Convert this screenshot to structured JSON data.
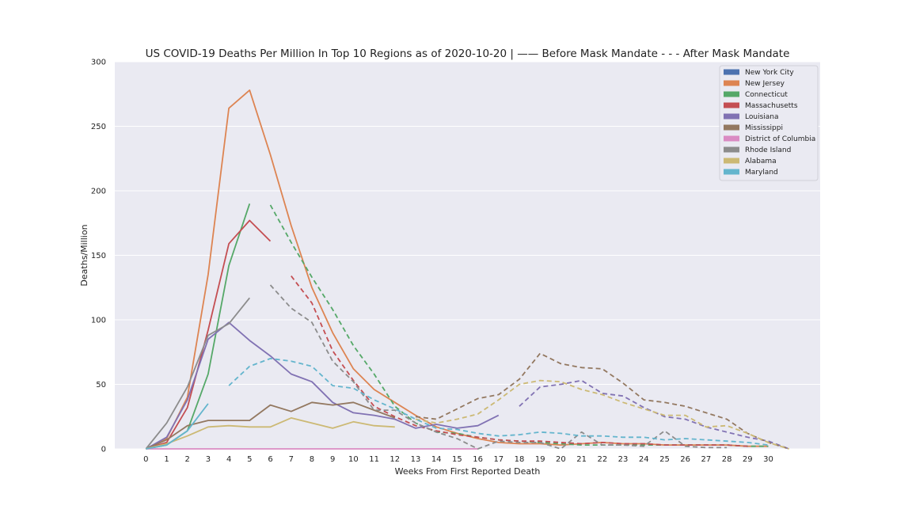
{
  "chart_data": {
    "type": "line",
    "title": "US COVID-19 Deaths Per Million In Top 10 Regions as of 2020-10-20 | —— Before Mask Mandate  - - - After Mask Mandate",
    "xlabel": "Weeks From First Reported Death",
    "ylabel": "Deaths/Million",
    "xlim": [
      -1.5,
      32.5
    ],
    "ylim": [
      0,
      300
    ],
    "xticks": [
      0,
      1,
      2,
      3,
      4,
      5,
      6,
      7,
      8,
      9,
      10,
      11,
      12,
      13,
      14,
      15,
      16,
      17,
      18,
      19,
      20,
      21,
      22,
      23,
      24,
      25,
      26,
      27,
      28,
      29,
      30
    ],
    "yticks": [
      0,
      50,
      100,
      150,
      200,
      250,
      300
    ],
    "grid": true,
    "legend_position": "top-right",
    "background_color": "#eaeaf2",
    "series": [
      {
        "name": "New York City",
        "color": "#4c72b0",
        "before": [],
        "after": []
      },
      {
        "name": "New Jersey",
        "color": "#dd8452",
        "before": [
          [
            0,
            0
          ],
          [
            1,
            8
          ],
          [
            2,
            40
          ],
          [
            3,
            135
          ],
          [
            4,
            264
          ],
          [
            5,
            278
          ],
          [
            6,
            228
          ],
          [
            7,
            173
          ],
          [
            8,
            125
          ],
          [
            9,
            90
          ],
          [
            10,
            62
          ],
          [
            11,
            46
          ],
          [
            12,
            36
          ],
          [
            13,
            26
          ],
          [
            14,
            17
          ],
          [
            15,
            12
          ],
          [
            16,
            8
          ],
          [
            17,
            5
          ],
          [
            18,
            4
          ],
          [
            19,
            4
          ],
          [
            20,
            3
          ],
          [
            21,
            4
          ],
          [
            22,
            5
          ],
          [
            23,
            4
          ],
          [
            24,
            4
          ],
          [
            25,
            3
          ],
          [
            26,
            3
          ],
          [
            27,
            3
          ],
          [
            28,
            3
          ],
          [
            29,
            2
          ],
          [
            30,
            2
          ]
        ],
        "after": []
      },
      {
        "name": "Connecticut",
        "color": "#55a868",
        "before": [
          [
            0,
            0
          ],
          [
            1,
            3
          ],
          [
            2,
            14
          ],
          [
            3,
            58
          ],
          [
            4,
            142
          ],
          [
            5,
            190
          ]
        ],
        "after": [
          [
            6,
            189
          ],
          [
            7,
            160
          ],
          [
            8,
            133
          ],
          [
            9,
            108
          ],
          [
            10,
            80
          ],
          [
            11,
            58
          ],
          [
            12,
            33
          ],
          [
            13,
            20
          ],
          [
            14,
            13
          ],
          [
            15,
            12
          ],
          [
            16,
            9
          ],
          [
            17,
            7
          ],
          [
            18,
            6
          ],
          [
            19,
            5
          ],
          [
            20,
            4
          ],
          [
            21,
            3
          ],
          [
            22,
            3
          ],
          [
            23,
            3
          ],
          [
            24,
            3
          ],
          [
            25,
            3
          ],
          [
            26,
            3
          ],
          [
            27,
            3
          ],
          [
            28,
            3
          ],
          [
            29,
            2
          ],
          [
            30,
            2
          ]
        ]
      },
      {
        "name": "Massachusetts",
        "color": "#c44e52",
        "before": [
          [
            0,
            0
          ],
          [
            1,
            5
          ],
          [
            2,
            32
          ],
          [
            3,
            92
          ],
          [
            4,
            159
          ],
          [
            5,
            177
          ],
          [
            6,
            161
          ]
        ],
        "after": [
          [
            7,
            134
          ],
          [
            8,
            113
          ],
          [
            9,
            76
          ],
          [
            10,
            53
          ],
          [
            11,
            33
          ],
          [
            12,
            25
          ],
          [
            13,
            18
          ],
          [
            14,
            14
          ],
          [
            15,
            11
          ],
          [
            16,
            9
          ],
          [
            17,
            7
          ],
          [
            18,
            6
          ],
          [
            19,
            6
          ],
          [
            20,
            5
          ],
          [
            21,
            4
          ],
          [
            22,
            5
          ],
          [
            23,
            4
          ],
          [
            24,
            4
          ],
          [
            25,
            3
          ],
          [
            26,
            3
          ],
          [
            27,
            3
          ],
          [
            28,
            3
          ],
          [
            29,
            2
          ]
        ]
      },
      {
        "name": "Louisiana",
        "color": "#8172b3",
        "before": [
          [
            0,
            0
          ],
          [
            1,
            9
          ],
          [
            2,
            38
          ],
          [
            3,
            85
          ],
          [
            4,
            98
          ],
          [
            5,
            84
          ],
          [
            6,
            72
          ],
          [
            7,
            58
          ],
          [
            8,
            52
          ],
          [
            9,
            36
          ],
          [
            10,
            28
          ],
          [
            11,
            26
          ],
          [
            12,
            23
          ],
          [
            13,
            16
          ],
          [
            14,
            19
          ],
          [
            15,
            16
          ],
          [
            16,
            18
          ],
          [
            17,
            26
          ]
        ],
        "after": [
          [
            18,
            33
          ],
          [
            19,
            48
          ],
          [
            20,
            50
          ],
          [
            21,
            53
          ],
          [
            22,
            43
          ],
          [
            23,
            41
          ],
          [
            24,
            32
          ],
          [
            25,
            25
          ],
          [
            26,
            23
          ],
          [
            27,
            17
          ],
          [
            28,
            13
          ],
          [
            29,
            9
          ],
          [
            30,
            6
          ],
          [
            31,
            0
          ]
        ]
      },
      {
        "name": "Mississippi",
        "color": "#937860",
        "before": [
          [
            0,
            0
          ],
          [
            1,
            7
          ],
          [
            2,
            18
          ],
          [
            3,
            22
          ],
          [
            4,
            22
          ],
          [
            5,
            22
          ],
          [
            6,
            34
          ],
          [
            7,
            29
          ],
          [
            8,
            36
          ],
          [
            9,
            34
          ],
          [
            10,
            36
          ],
          [
            11,
            30
          ],
          [
            12,
            24
          ]
        ],
        "after": [
          [
            13,
            25
          ],
          [
            14,
            23
          ],
          [
            15,
            31
          ],
          [
            16,
            39
          ],
          [
            17,
            42
          ],
          [
            18,
            54
          ],
          [
            19,
            74
          ],
          [
            20,
            66
          ],
          [
            21,
            63
          ],
          [
            22,
            62
          ],
          [
            23,
            51
          ],
          [
            24,
            38
          ],
          [
            25,
            36
          ],
          [
            26,
            33
          ],
          [
            27,
            28
          ],
          [
            28,
            23
          ],
          [
            29,
            12
          ],
          [
            30,
            5
          ],
          [
            31,
            0
          ]
        ]
      },
      {
        "name": "District of Columbia",
        "color": "#da8bc3",
        "before": [
          [
            0,
            0
          ],
          [
            1,
            0
          ],
          [
            2,
            0
          ],
          [
            3,
            0
          ],
          [
            4,
            0
          ],
          [
            5,
            0
          ],
          [
            6,
            0
          ],
          [
            7,
            0
          ],
          [
            8,
            0
          ],
          [
            9,
            0
          ],
          [
            10,
            0
          ],
          [
            11,
            0
          ],
          [
            12,
            0
          ],
          [
            13,
            0
          ],
          [
            14,
            0
          ],
          [
            15,
            0
          ],
          [
            16,
            0
          ]
        ],
        "after": []
      },
      {
        "name": "Rhode Island",
        "color": "#8c8c8c",
        "before": [
          [
            0,
            0
          ],
          [
            1,
            20
          ],
          [
            2,
            48
          ],
          [
            3,
            88
          ],
          [
            4,
            97
          ],
          [
            5,
            117
          ]
        ],
        "after": [
          [
            6,
            127
          ],
          [
            7,
            109
          ],
          [
            8,
            98
          ],
          [
            9,
            68
          ],
          [
            10,
            52
          ],
          [
            11,
            30
          ],
          [
            12,
            30
          ],
          [
            13,
            20
          ],
          [
            14,
            13
          ],
          [
            15,
            8
          ],
          [
            16,
            0
          ],
          [
            17,
            6
          ],
          [
            18,
            5
          ],
          [
            19,
            5
          ],
          [
            20,
            0
          ],
          [
            21,
            13
          ],
          [
            22,
            3
          ],
          [
            23,
            3
          ],
          [
            24,
            2
          ],
          [
            25,
            14
          ],
          [
            26,
            2
          ],
          [
            27,
            1
          ],
          [
            28,
            1
          ]
        ]
      },
      {
        "name": "Alabama",
        "color": "#ccb974",
        "before": [
          [
            0,
            0
          ],
          [
            1,
            4
          ],
          [
            2,
            10
          ],
          [
            3,
            17
          ],
          [
            4,
            18
          ],
          [
            5,
            17
          ],
          [
            6,
            17
          ],
          [
            7,
            24
          ],
          [
            8,
            20
          ],
          [
            9,
            16
          ],
          [
            10,
            21
          ],
          [
            11,
            18
          ],
          [
            12,
            17
          ]
        ],
        "after": [
          [
            13,
            23
          ],
          [
            14,
            20
          ],
          [
            15,
            23
          ],
          [
            16,
            27
          ],
          [
            17,
            38
          ],
          [
            18,
            50
          ],
          [
            19,
            53
          ],
          [
            20,
            52
          ],
          [
            21,
            46
          ],
          [
            22,
            42
          ],
          [
            23,
            36
          ],
          [
            24,
            31
          ],
          [
            25,
            26
          ],
          [
            26,
            26
          ],
          [
            27,
            17
          ],
          [
            28,
            18
          ],
          [
            29,
            12
          ],
          [
            30,
            5
          ],
          [
            31,
            0
          ]
        ]
      },
      {
        "name": "Maryland",
        "color": "#64b5cd",
        "before": [
          [
            0,
            0
          ],
          [
            1,
            3
          ],
          [
            2,
            14
          ],
          [
            3,
            35
          ]
        ],
        "after": [
          [
            4,
            49
          ],
          [
            5,
            64
          ],
          [
            6,
            70
          ],
          [
            7,
            68
          ],
          [
            8,
            64
          ],
          [
            9,
            49
          ],
          [
            10,
            47
          ],
          [
            11,
            38
          ],
          [
            12,
            31
          ],
          [
            13,
            23
          ],
          [
            14,
            16
          ],
          [
            15,
            15
          ],
          [
            16,
            12
          ],
          [
            17,
            10
          ],
          [
            18,
            11
          ],
          [
            19,
            13
          ],
          [
            20,
            12
          ],
          [
            21,
            10
          ],
          [
            22,
            10
          ],
          [
            23,
            9
          ],
          [
            24,
            9
          ],
          [
            25,
            7
          ],
          [
            26,
            8
          ],
          [
            27,
            7
          ],
          [
            28,
            6
          ],
          [
            29,
            5
          ],
          [
            30,
            3
          ]
        ]
      }
    ]
  }
}
